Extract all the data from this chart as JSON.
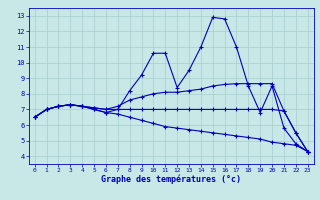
{
  "xlabel": "Graphe des températures (°c)",
  "xlim": [
    -0.5,
    23.5
  ],
  "ylim": [
    3.5,
    13.5
  ],
  "yticks": [
    4,
    5,
    6,
    7,
    8,
    9,
    10,
    11,
    12,
    13
  ],
  "xticks": [
    0,
    1,
    2,
    3,
    4,
    5,
    6,
    7,
    8,
    9,
    10,
    11,
    12,
    13,
    14,
    15,
    16,
    17,
    18,
    19,
    20,
    21,
    22,
    23
  ],
  "background_color": "#c8e8e8",
  "grid_color": "#a8cccc",
  "line_color": "#0000bb",
  "figsize": [
    3.2,
    2.0
  ],
  "dpi": 100,
  "lines": [
    [
      6.5,
      7.0,
      7.2,
      7.3,
      7.2,
      7.0,
      6.8,
      7.0,
      8.2,
      9.2,
      10.6,
      10.6,
      8.4,
      9.5,
      11.0,
      12.9,
      12.8,
      11.0,
      8.5,
      6.8,
      8.5,
      5.8,
      4.8,
      4.3
    ],
    [
      6.5,
      7.0,
      7.2,
      7.3,
      7.2,
      7.1,
      7.0,
      7.2,
      7.6,
      7.8,
      8.0,
      8.1,
      8.1,
      8.2,
      8.3,
      8.5,
      8.6,
      8.65,
      8.65,
      8.65,
      8.65,
      6.9,
      5.5,
      4.3
    ],
    [
      6.5,
      7.0,
      7.2,
      7.3,
      7.2,
      7.1,
      7.0,
      7.0,
      7.0,
      7.0,
      7.0,
      7.0,
      7.0,
      7.0,
      7.0,
      7.0,
      7.0,
      7.0,
      7.0,
      7.0,
      7.0,
      6.9,
      5.5,
      4.3
    ],
    [
      6.5,
      7.0,
      7.2,
      7.3,
      7.2,
      7.0,
      6.8,
      6.7,
      6.5,
      6.3,
      6.1,
      5.9,
      5.8,
      5.7,
      5.6,
      5.5,
      5.4,
      5.3,
      5.2,
      5.1,
      4.9,
      4.8,
      4.7,
      4.3
    ]
  ]
}
